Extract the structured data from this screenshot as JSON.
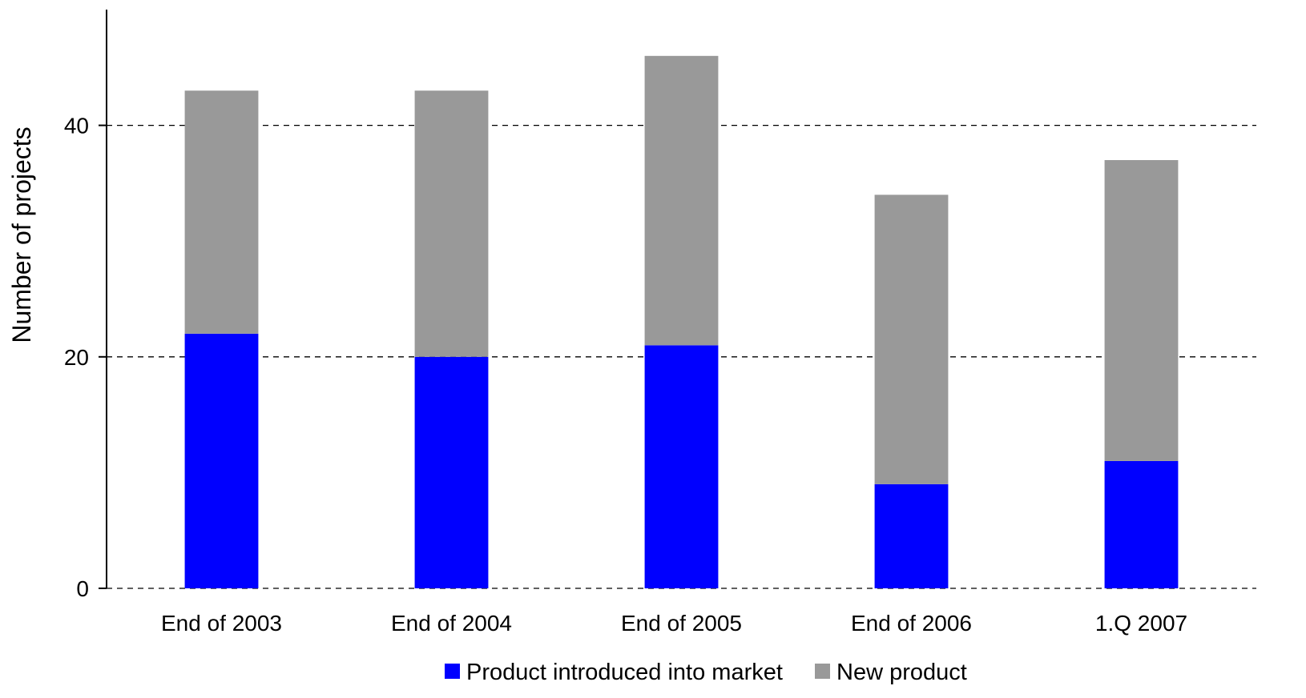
{
  "chart_data": {
    "type": "bar",
    "stacked": true,
    "categories": [
      "End of 2003",
      "End of 2004",
      "End of 2005",
      "End of 2006",
      "1.Q 2007"
    ],
    "series": [
      {
        "name": "Product introduced into market",
        "values": [
          22,
          20,
          21,
          9,
          11
        ],
        "color": "#0000FF"
      },
      {
        "name": "New product",
        "values": [
          21,
          23,
          25,
          25,
          26
        ],
        "color": "#999999"
      }
    ],
    "title": "",
    "xlabel": "",
    "ylabel": "Number of projects",
    "ylim": [
      0,
      50
    ],
    "yticks": [
      0,
      20,
      40
    ],
    "grid": true,
    "legend": "bottom"
  }
}
